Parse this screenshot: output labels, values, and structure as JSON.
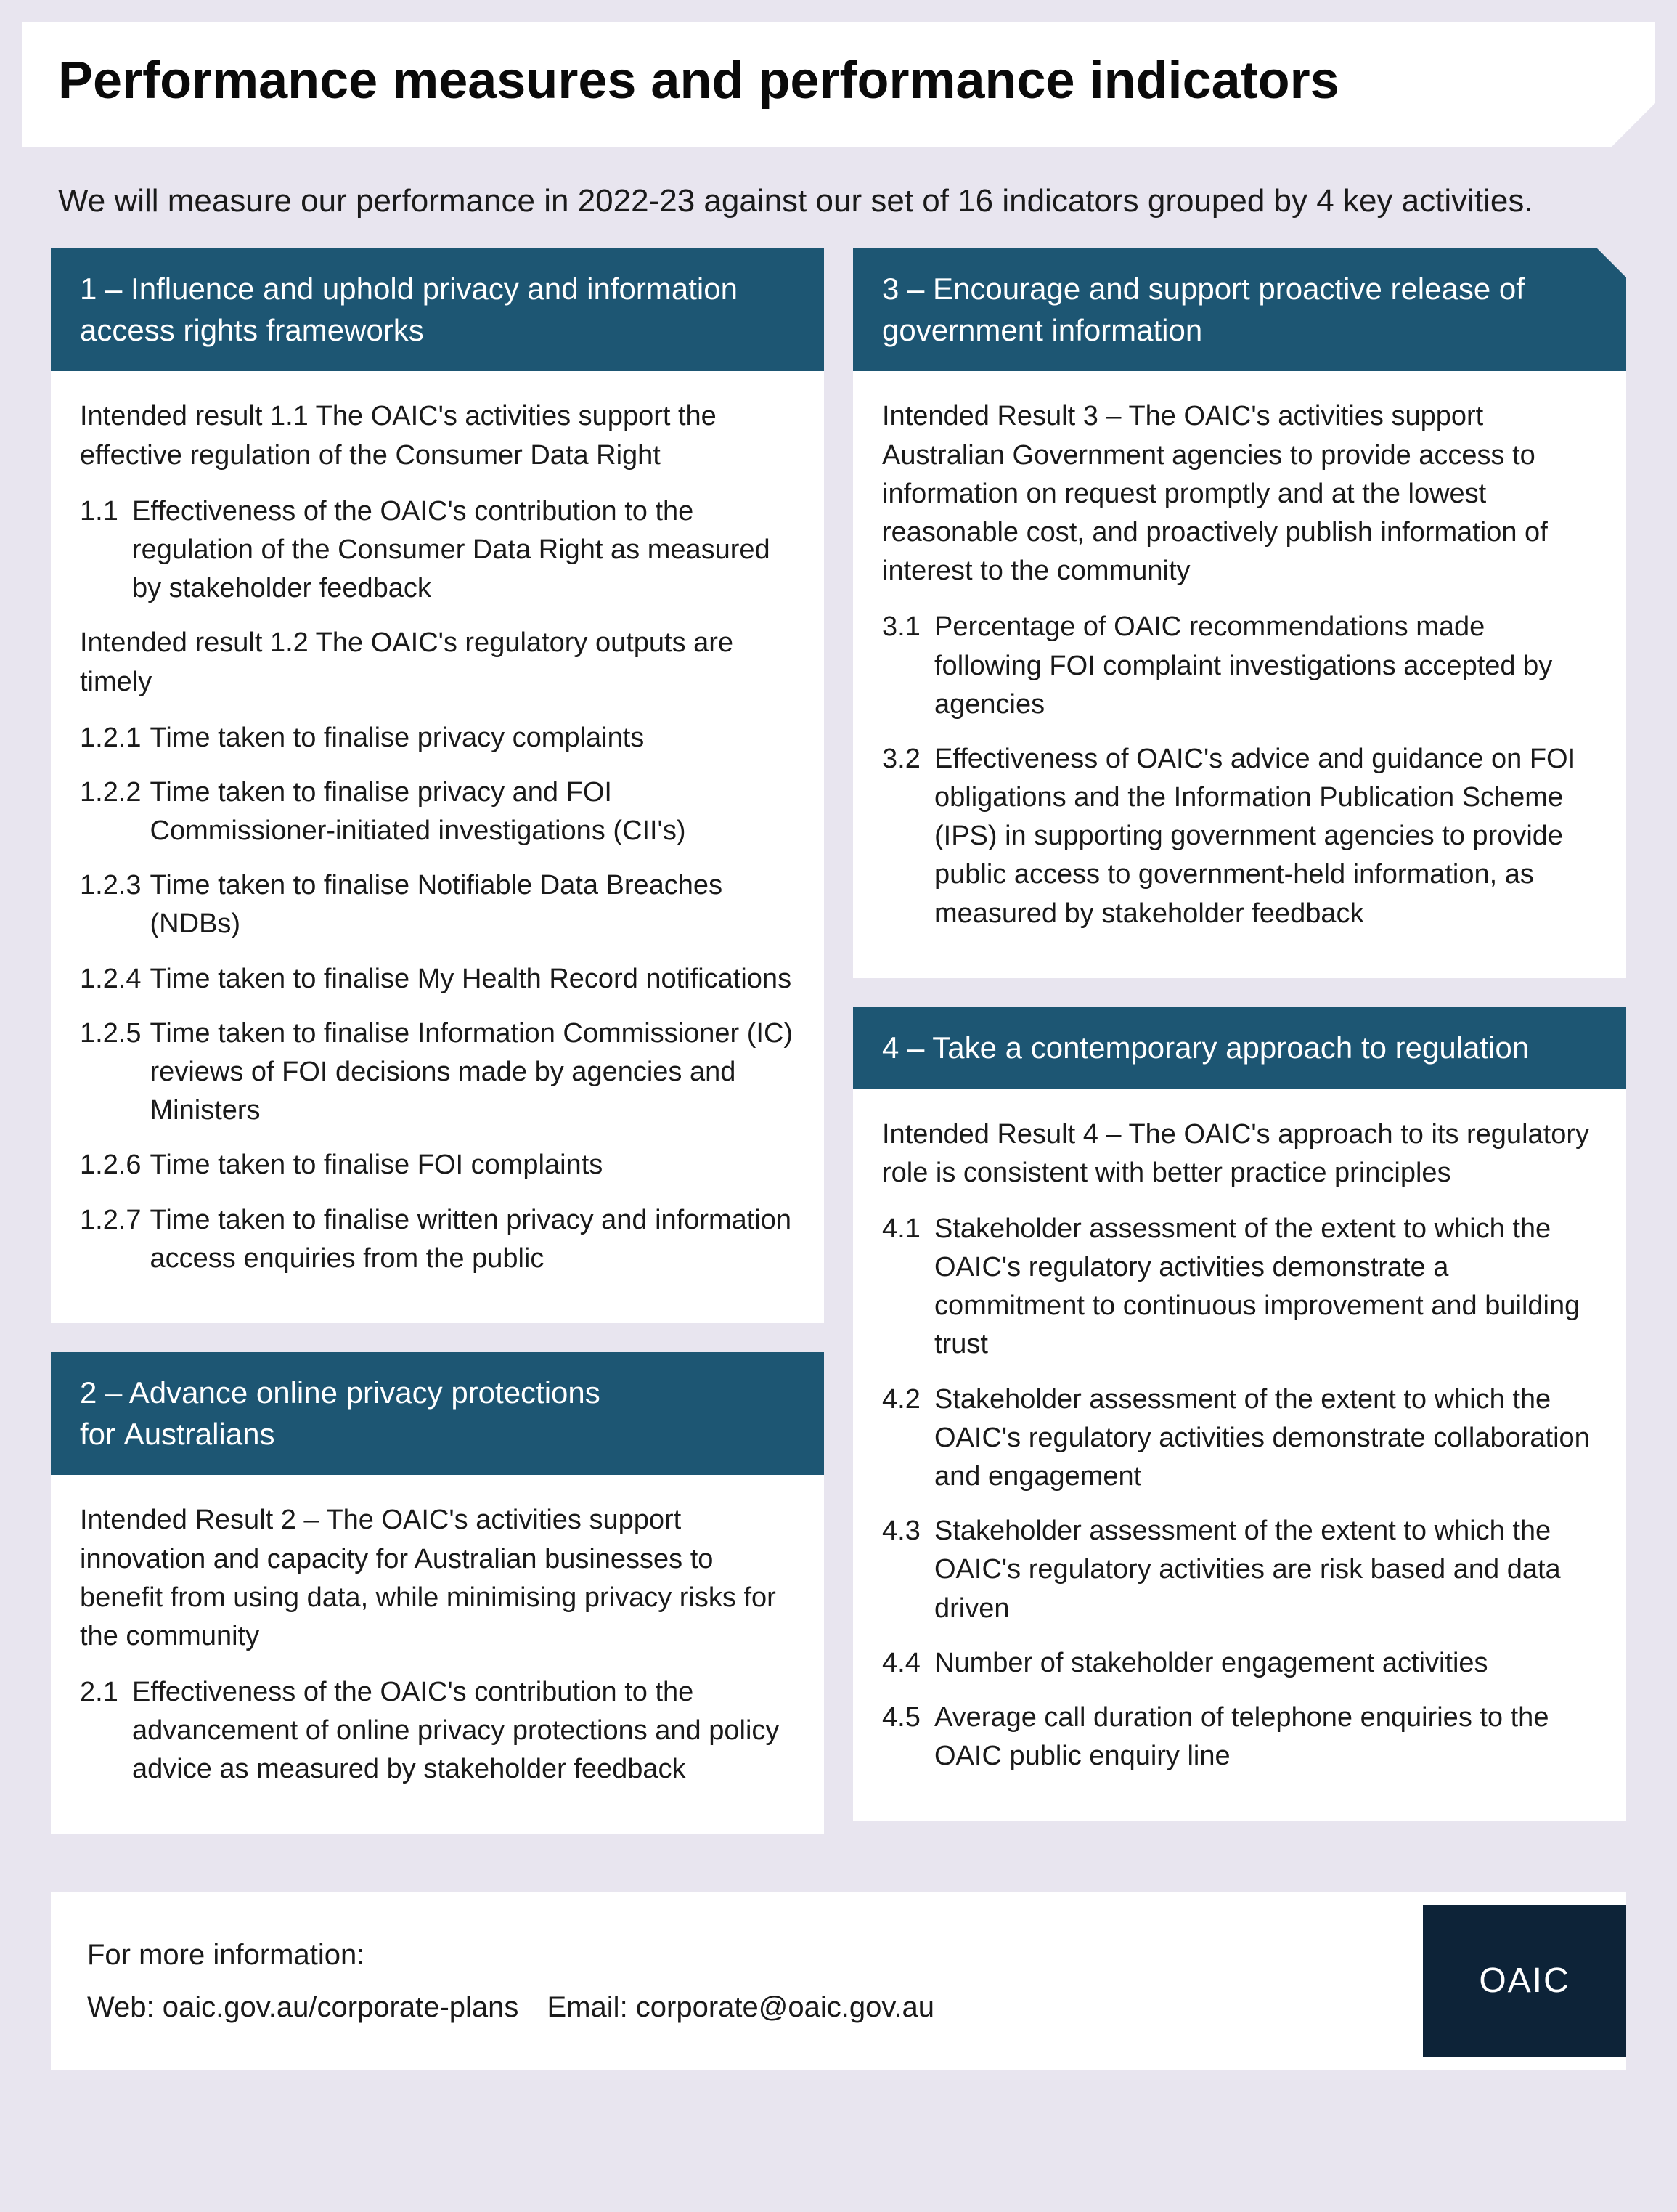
{
  "colors": {
    "page_bg": "#e8e5ef",
    "card_bg": "#ffffff",
    "header_bg": "#1d5673",
    "header_text": "#ffffff",
    "body_text": "#1a1a1a",
    "logo_bg": "#0d2338"
  },
  "title": "Performance measures and performance indicators",
  "intro": "We will measure our performance in 2022-23 against our set of 16 indicators grouped by 4 key activities.",
  "cards": {
    "c1": {
      "header": "1 – Influence and uphold privacy and information access rights frameworks",
      "result1": "Intended result 1.1 The OAIC's activities support the effective regulation of the Consumer Data Right",
      "i11_num": "1.1",
      "i11_text": "Effectiveness of the OAIC's contribution to the regulation of the Consumer Data Right as measured by stakeholder feedback",
      "result2": "Intended result 1.2 The OAIC's regulatory outputs are timely",
      "i121_num": "1.2.1",
      "i121_text": "Time taken to finalise privacy complaints",
      "i122_num": "1.2.2",
      "i122_text": "Time taken to finalise privacy and FOI Commissioner-initiated investigations (CII's)",
      "i123_num": "1.2.3",
      "i123_text": "Time taken to finalise Notifiable Data Breaches (NDBs)",
      "i124_num": "1.2.4",
      "i124_text": "Time taken to finalise My Health Record notifications",
      "i125_num": "1.2.5",
      "i125_text": "Time taken to finalise Information Commissioner (IC) reviews of FOI decisions made by agencies and Ministers",
      "i126_num": "1.2.6",
      "i126_text": "Time taken to finalise FOI complaints",
      "i127_num": "1.2.7",
      "i127_text": "Time taken to finalise written privacy and information access enquiries from the public"
    },
    "c2": {
      "header": "2 – Advance online privacy protections for Australians",
      "result": "Intended Result 2 – The OAIC's activities support innovation and capacity for Australian businesses to benefit from using data, while minimising privacy risks for the community",
      "i21_num": "2.1",
      "i21_text": "Effectiveness of the OAIC's contribution to the advancement of online privacy protections and policy advice as measured by stakeholder feedback"
    },
    "c3": {
      "header": "3 – Encourage and support proactive release of government information",
      "result": "Intended Result 3 – The OAIC's activities support Australian Government agencies to provide access to information on request promptly and at the lowest reasonable cost, and proactively publish information of interest to the community",
      "i31_num": "3.1",
      "i31_text": "Percentage of OAIC recommendations made following FOI complaint investigations accepted by agencies",
      "i32_num": "3.2",
      "i32_text": "Effectiveness of OAIC's advice and guidance on FOI obligations and the Information Publication Scheme (IPS) in supporting government agencies to provide public access to government-held information, as measured by stakeholder feedback"
    },
    "c4": {
      "header": "4 – Take a contemporary approach to regulation",
      "result": "Intended Result 4 – The OAIC's approach to its regulatory role is consistent with better practice principles",
      "i41_num": "4.1",
      "i41_text": "Stakeholder assessment of the extent to which the OAIC's regulatory activities demonstrate a commitment to continuous improvement and building trust",
      "i42_num": "4.2",
      "i42_text": "Stakeholder assessment of the extent to which the OAIC's regulatory activities demonstrate collaboration and engagement",
      "i43_num": "4.3",
      "i43_text": "Stakeholder assessment of the extent to which the OAIC's regulatory activities are risk based and data driven",
      "i44_num": "4.4",
      "i44_text": "Number of stakeholder engagement activities",
      "i45_num": "4.5",
      "i45_text": "Average call duration of telephone enquiries to the OAIC public enquiry line"
    }
  },
  "footer": {
    "more_info": "For more information:",
    "web_label": "Web: oaic.gov.au/corporate-plans",
    "email_label": "Email: corporate@oaic.gov.au",
    "logo": "OAIC"
  }
}
